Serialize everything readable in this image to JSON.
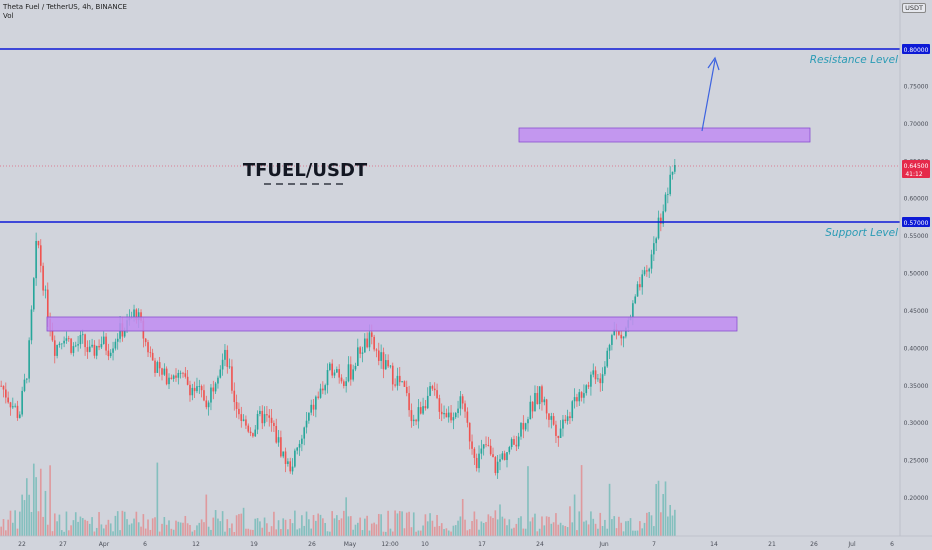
{
  "header": {
    "symbol_line": "Theta Fuel / TetherUS, 4h, BINANCE",
    "volume_label": "Vol"
  },
  "quote_currency": "USDT",
  "annotations": {
    "title": "TFUEL/USDT",
    "resistance_label": "Resistance Level",
    "support_label": "Support Level"
  },
  "price_badges": {
    "resistance": "0.80000",
    "current": "0.64500",
    "current_timer": "41:12",
    "support": "0.57000"
  },
  "colors": {
    "background": "#d1d4dc",
    "up_candle": "#26a69a",
    "down_candle": "#ef5350",
    "level_line": "#0d1ad6",
    "zone_fill": "#c18cf2",
    "label_text": "#2a9bb5",
    "current_badge": "#e5294a"
  },
  "chart_data": {
    "type": "candlestick",
    "y_axis": {
      "min": 0.15,
      "max": 0.85,
      "tick_labels": [
        "0.75000",
        "0.70000",
        "0.65000",
        "0.60000",
        "0.55000",
        "0.50000",
        "0.45000",
        "0.40000",
        "0.35000",
        "0.30000",
        "0.25000",
        "0.20000"
      ],
      "tick_values": [
        0.75,
        0.7,
        0.65,
        0.6,
        0.55,
        0.5,
        0.45,
        0.4,
        0.35,
        0.3,
        0.25,
        0.2
      ]
    },
    "x_axis": {
      "tick_labels": [
        "22",
        "27",
        "Apr",
        "6",
        "12",
        "19",
        "26",
        "May",
        "12:00",
        "10",
        "17",
        "24",
        "Jun",
        "7",
        "14",
        "21",
        "26",
        "Jul",
        "6"
      ]
    },
    "levels": [
      {
        "name": "Resistance Level",
        "price": 0.8
      },
      {
        "name": "Support Level",
        "price": 0.57
      }
    ],
    "zones": [
      {
        "low": 0.425,
        "high": 0.445
      },
      {
        "low": 0.68,
        "high": 0.7
      }
    ],
    "current_price": 0.645,
    "price_path": [
      0.35,
      0.33,
      0.31,
      0.38,
      0.55,
      0.46,
      0.4,
      0.42,
      0.4,
      0.41,
      0.39,
      0.41,
      0.4,
      0.42,
      0.43,
      0.45,
      0.41,
      0.38,
      0.36,
      0.37,
      0.36,
      0.35,
      0.34,
      0.33,
      0.37,
      0.39,
      0.33,
      0.3,
      0.29,
      0.31,
      0.3,
      0.27,
      0.24,
      0.26,
      0.3,
      0.33,
      0.35,
      0.38,
      0.36,
      0.37,
      0.4,
      0.41,
      0.39,
      0.37,
      0.36,
      0.34,
      0.3,
      0.33,
      0.34,
      0.32,
      0.31,
      0.33,
      0.29,
      0.25,
      0.27,
      0.24,
      0.26,
      0.27,
      0.3,
      0.32,
      0.34,
      0.31,
      0.29,
      0.31,
      0.33,
      0.35,
      0.37,
      0.36,
      0.43,
      0.41,
      0.44,
      0.48,
      0.5,
      0.56,
      0.6,
      0.645
    ]
  }
}
